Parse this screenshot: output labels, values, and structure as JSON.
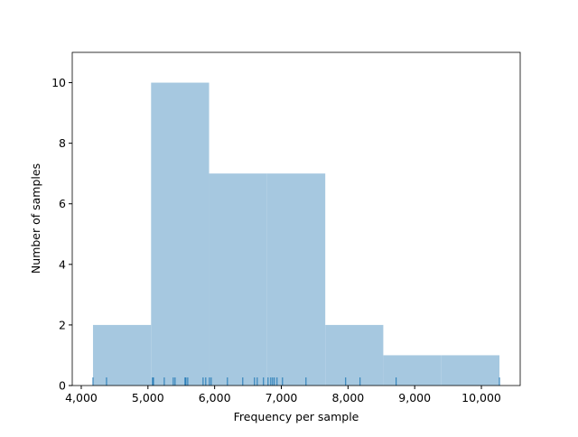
{
  "chart_data": {
    "type": "histogram",
    "x_label": "Frequency per sample",
    "y_label": "Number of samples",
    "bins": [
      4176,
      5047,
      5917,
      6788,
      7659,
      8529,
      9400,
      10271
    ],
    "counts": [
      2,
      10,
      7,
      7,
      2,
      1,
      1
    ],
    "color": "#a6c8e0",
    "rug": [
      4176,
      4379,
      5069,
      5083,
      5245,
      5380,
      5407,
      5556,
      5570,
      5597,
      5827,
      5867,
      5922,
      5949,
      6192,
      6422,
      6598,
      6639,
      6733,
      6801,
      6842,
      6869,
      6896,
      6936,
      7018,
      7370,
      7965,
      8181,
      8722,
      10271
    ],
    "rug_color": "#1f77b4",
    "xlim": [
      3865,
      10582
    ],
    "ylim": [
      0,
      11
    ],
    "xticks": [
      {
        "value": 4000,
        "label": "4,000"
      },
      {
        "value": 5000,
        "label": "5,000"
      },
      {
        "value": 6000,
        "label": "6,000"
      },
      {
        "value": 7000,
        "label": "7,000"
      },
      {
        "value": 8000,
        "label": "8,000"
      },
      {
        "value": 9000,
        "label": "9,000"
      },
      {
        "value": 10000,
        "label": "10,000"
      }
    ],
    "yticks": [
      0,
      2,
      4,
      6,
      8,
      10
    ]
  }
}
